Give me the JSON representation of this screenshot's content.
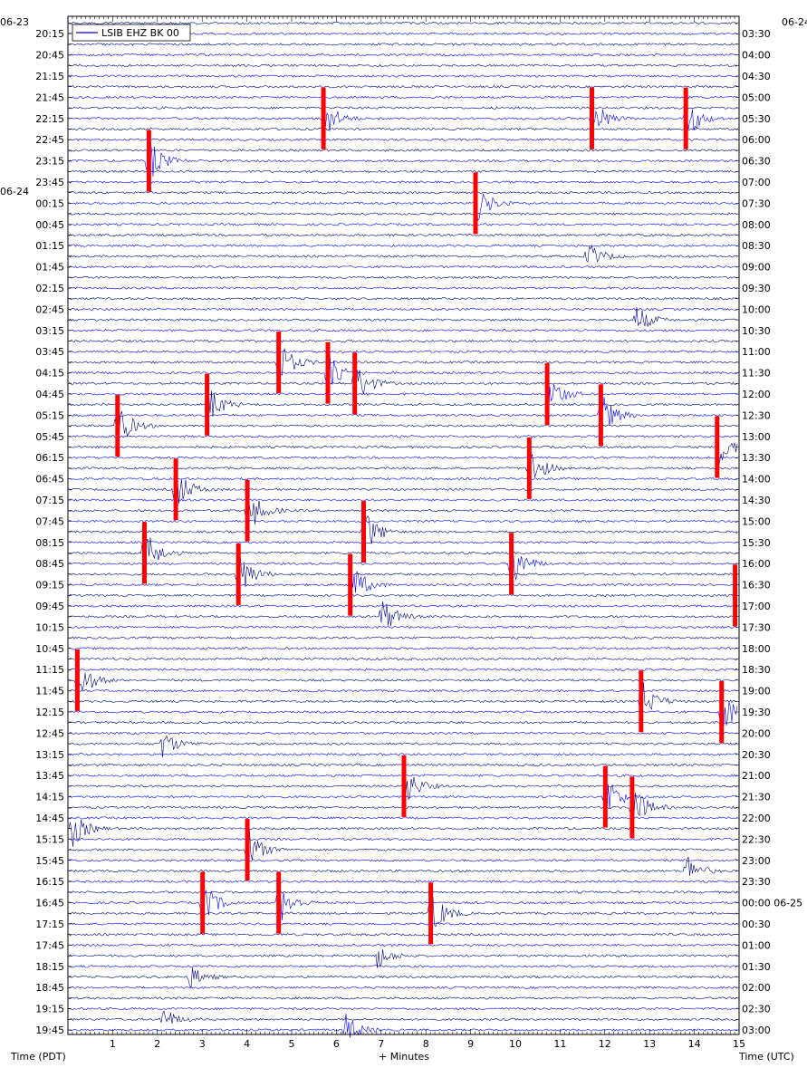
{
  "chart_data": {
    "type": "line",
    "title": "",
    "legend": {
      "label": "LSIB EHZ BK 00",
      "placement": "top-left",
      "color": "#0000ff"
    },
    "xlabel": "+ Minutes",
    "ylabel_left": "Time (PDT)",
    "ylabel_right": "Time (UTC)",
    "xlim": [
      0,
      15
    ],
    "x_ticks": [
      "1",
      "2",
      "3",
      "4",
      "5",
      "6",
      "7",
      "8",
      "9",
      "10",
      "11",
      "12",
      "13",
      "14",
      "15"
    ],
    "date_left_start": "06-23",
    "date_left_next": "06-24",
    "date_right_start": "06-24",
    "date_right_next": "06-25",
    "left_labels": [
      "20:15",
      "20:45",
      "21:15",
      "21:45",
      "22:15",
      "22:45",
      "23:15",
      "23:45",
      "00:15",
      "00:45",
      "01:15",
      "01:45",
      "02:15",
      "02:45",
      "03:15",
      "03:45",
      "04:15",
      "04:45",
      "05:15",
      "05:45",
      "06:15",
      "06:45",
      "07:15",
      "07:45",
      "08:15",
      "08:45",
      "09:15",
      "09:45",
      "10:15",
      "10:45",
      "11:15",
      "11:45",
      "12:15",
      "12:45",
      "13:15",
      "13:45",
      "14:15",
      "14:45",
      "15:15",
      "15:45",
      "16:15",
      "16:45",
      "17:15",
      "17:45",
      "18:15",
      "18:45",
      "19:15",
      "19:45"
    ],
    "right_labels": [
      "03:30",
      "04:00",
      "04:30",
      "05:00",
      "05:30",
      "06:00",
      "06:30",
      "07:00",
      "07:30",
      "08:00",
      "08:30",
      "09:00",
      "09:30",
      "10:00",
      "10:30",
      "11:00",
      "11:30",
      "12:00",
      "12:30",
      "13:00",
      "13:30",
      "14:00",
      "14:30",
      "15:00",
      "15:30",
      "16:00",
      "16:30",
      "17:00",
      "17:30",
      "18:00",
      "18:30",
      "19:00",
      "19:30",
      "20:00",
      "20:30",
      "21:00",
      "21:30",
      "22:00",
      "22:30",
      "23:00",
      "23:30",
      "00:00 06-25",
      "00:30",
      "01:00",
      "01:30",
      "02:00",
      "02:30",
      "03:00"
    ],
    "trace_colors": [
      "#000080",
      "#0000ff"
    ],
    "clip_color": "#ff0000",
    "series": [
      {
        "name": "LSIB EHZ BK 00",
        "traces_count": 96
      }
    ],
    "events": [
      {
        "trace": 9,
        "minute": 5.7,
        "amplitude": 0.9,
        "clipped": true
      },
      {
        "trace": 9,
        "minute": 11.7,
        "amplitude": 0.9,
        "clipped": true
      },
      {
        "trace": 9,
        "minute": 13.8,
        "amplitude": 0.9,
        "clipped": true
      },
      {
        "trace": 13,
        "minute": 1.8,
        "amplitude": 0.9,
        "clipped": true
      },
      {
        "trace": 17,
        "minute": 9.1,
        "amplitude": 0.9,
        "clipped": true
      },
      {
        "trace": 22,
        "minute": 11.6,
        "amplitude": 0.6,
        "clipped": false
      },
      {
        "trace": 28,
        "minute": 12.7,
        "amplitude": 0.6,
        "clipped": false
      },
      {
        "trace": 32,
        "minute": 4.7,
        "amplitude": 1.0,
        "clipped": true
      },
      {
        "trace": 33,
        "minute": 5.8,
        "amplitude": 1.0,
        "clipped": true
      },
      {
        "trace": 34,
        "minute": 6.4,
        "amplitude": 1.0,
        "clipped": true
      },
      {
        "trace": 35,
        "minute": 10.7,
        "amplitude": 1.0,
        "clipped": true
      },
      {
        "trace": 36,
        "minute": 3.1,
        "amplitude": 0.9,
        "clipped": true
      },
      {
        "trace": 37,
        "minute": 11.9,
        "amplitude": 0.9,
        "clipped": true
      },
      {
        "trace": 38,
        "minute": 1.1,
        "amplitude": 0.9,
        "clipped": true
      },
      {
        "trace": 40,
        "minute": 14.5,
        "amplitude": 0.9,
        "clipped": true
      },
      {
        "trace": 42,
        "minute": 10.3,
        "amplitude": 0.9,
        "clipped": true
      },
      {
        "trace": 44,
        "minute": 2.4,
        "amplitude": 0.9,
        "clipped": true
      },
      {
        "trace": 46,
        "minute": 4.0,
        "amplitude": 1.0,
        "clipped": true
      },
      {
        "trace": 48,
        "minute": 6.6,
        "amplitude": 1.0,
        "clipped": true
      },
      {
        "trace": 50,
        "minute": 1.7,
        "amplitude": 1.0,
        "clipped": true
      },
      {
        "trace": 51,
        "minute": 9.9,
        "amplitude": 1.0,
        "clipped": true
      },
      {
        "trace": 52,
        "minute": 3.8,
        "amplitude": 1.0,
        "clipped": true
      },
      {
        "trace": 53,
        "minute": 6.3,
        "amplitude": 1.0,
        "clipped": true
      },
      {
        "trace": 54,
        "minute": 14.9,
        "amplitude": 1.0,
        "clipped": true
      },
      {
        "trace": 56,
        "minute": 7.0,
        "amplitude": 0.8,
        "clipped": false
      },
      {
        "trace": 62,
        "minute": 0.2,
        "amplitude": 0.9,
        "clipped": true
      },
      {
        "trace": 64,
        "minute": 12.8,
        "amplitude": 0.9,
        "clipped": true
      },
      {
        "trace": 65,
        "minute": 14.6,
        "amplitude": 1.0,
        "clipped": true
      },
      {
        "trace": 68,
        "minute": 2.1,
        "amplitude": 0.6,
        "clipped": false
      },
      {
        "trace": 72,
        "minute": 7.5,
        "amplitude": 0.9,
        "clipped": true
      },
      {
        "trace": 73,
        "minute": 12.0,
        "amplitude": 1.0,
        "clipped": true
      },
      {
        "trace": 74,
        "minute": 12.6,
        "amplitude": 1.0,
        "clipped": true
      },
      {
        "trace": 76,
        "minute": 0.1,
        "amplitude": 0.7,
        "clipped": false
      },
      {
        "trace": 78,
        "minute": 4.0,
        "amplitude": 0.9,
        "clipped": true
      },
      {
        "trace": 80,
        "minute": 13.8,
        "amplitude": 0.7,
        "clipped": false
      },
      {
        "trace": 83,
        "minute": 3.0,
        "amplitude": 0.9,
        "clipped": true
      },
      {
        "trace": 83,
        "minute": 4.7,
        "amplitude": 0.9,
        "clipped": true
      },
      {
        "trace": 84,
        "minute": 8.1,
        "amplitude": 1.0,
        "clipped": true
      },
      {
        "trace": 88,
        "minute": 6.9,
        "amplitude": 0.5,
        "clipped": false
      },
      {
        "trace": 90,
        "minute": 2.7,
        "amplitude": 0.5,
        "clipped": false
      },
      {
        "trace": 94,
        "minute": 2.1,
        "amplitude": 0.5,
        "clipped": false
      },
      {
        "trace": 95,
        "minute": 6.2,
        "amplitude": 0.6,
        "clipped": false
      }
    ]
  }
}
